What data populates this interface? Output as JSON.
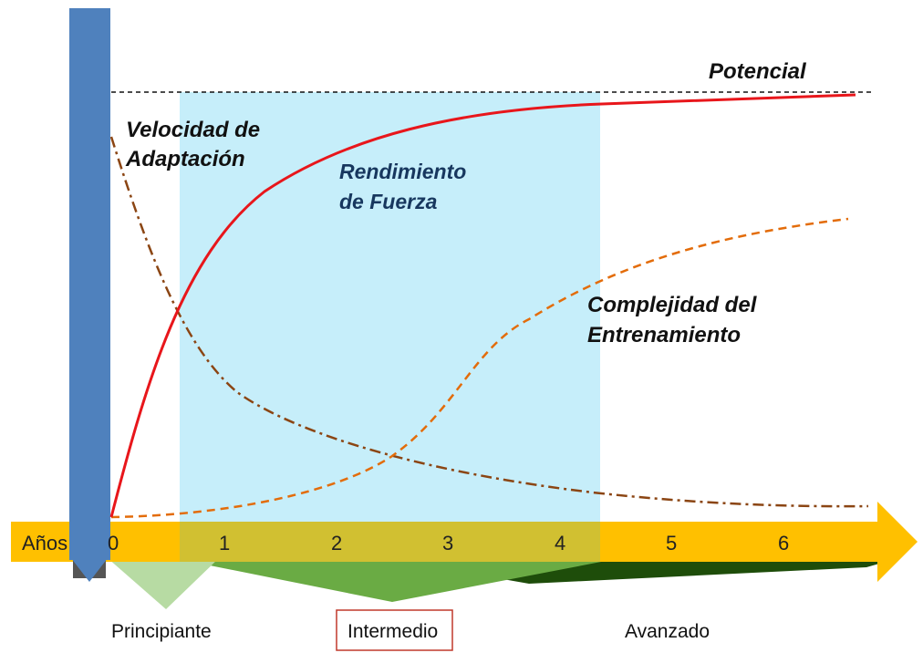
{
  "axis": {
    "label": "Años",
    "ticks": [
      "0",
      "1",
      "2",
      "3",
      "4",
      "5",
      "6"
    ]
  },
  "labels": {
    "potential": "Potencial",
    "adaptation_line1": "Velocidad de",
    "adaptation_line2": "Adaptación",
    "strength_line1": "Rendimiento",
    "strength_line2": "de Fuerza",
    "complexity_line1": "Complejidad del",
    "complexity_line2": "Entrenamiento"
  },
  "levels": {
    "beginner": "Principiante",
    "intermediate": "Intermedio",
    "advanced": "Avanzado"
  },
  "colors": {
    "axis_arrow": "#ffc000",
    "highlight_band": "#c6eefa",
    "bar": "#4f81bd",
    "strength_curve": "#e8161b",
    "complexity_curve": "#e36c0a",
    "adaptation_curve": "#8b4513",
    "beginner_wedge": "#b7dba3",
    "intermediate_wedge": "#6aab44",
    "advanced_wedge": "#1e4d0a",
    "intermediate_box": "#c0392b"
  }
}
